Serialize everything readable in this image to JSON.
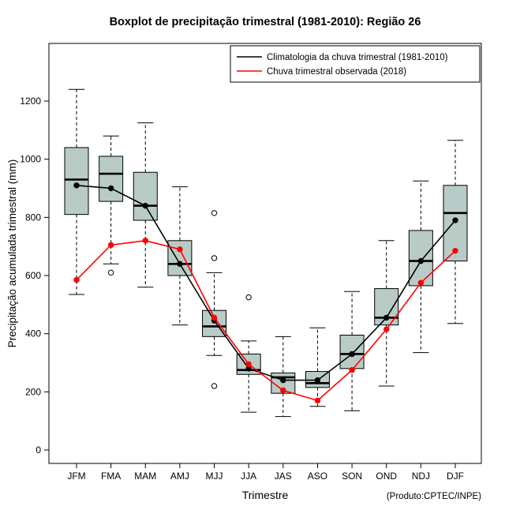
{
  "chart_data": {
    "type": "boxplot",
    "title": "Boxplot de precipitação trimestral (1981-2010): Região 26",
    "xlabel": "Trimestre",
    "ylabel": "Precipitação acumulada trimestral (mm)",
    "source_note": "(Produto:CPTEC/INPE)",
    "categories": [
      "JFM",
      "FMA",
      "MAM",
      "AMJ",
      "MJJ",
      "JJA",
      "JAS",
      "ASO",
      "SON",
      "OND",
      "NDJ",
      "DJF"
    ],
    "yticks": [
      0,
      200,
      400,
      600,
      800,
      1000,
      1200
    ],
    "ylim": [
      0,
      1300
    ],
    "box_fill": "#b9cbc6",
    "box_stroke": "#000000",
    "grid": false,
    "legend_position": "top-right",
    "boxes": [
      {
        "category": "JFM",
        "low": 535,
        "q1": 810,
        "median": 930,
        "q3": 1040,
        "high": 1240,
        "outliers": []
      },
      {
        "category": "FMA",
        "low": 640,
        "q1": 855,
        "median": 950,
        "q3": 1010,
        "high": 1080,
        "outliers": [
          610
        ]
      },
      {
        "category": "MAM",
        "low": 560,
        "q1": 790,
        "median": 840,
        "q3": 955,
        "high": 1125,
        "outliers": []
      },
      {
        "category": "AMJ",
        "low": 430,
        "q1": 600,
        "median": 640,
        "q3": 720,
        "high": 905,
        "outliers": []
      },
      {
        "category": "MJJ",
        "low": 325,
        "q1": 390,
        "median": 425,
        "q3": 480,
        "high": 610,
        "outliers": [
          815,
          660,
          220
        ]
      },
      {
        "category": "JJA",
        "low": 130,
        "q1": 260,
        "median": 275,
        "q3": 330,
        "high": 375,
        "outliers": [
          525
        ]
      },
      {
        "category": "JAS",
        "low": 115,
        "q1": 195,
        "median": 250,
        "q3": 265,
        "high": 390,
        "outliers": []
      },
      {
        "category": "ASO",
        "low": 150,
        "q1": 215,
        "median": 230,
        "q3": 270,
        "high": 420,
        "outliers": []
      },
      {
        "category": "SON",
        "low": 135,
        "q1": 280,
        "median": 330,
        "q3": 395,
        "high": 545,
        "outliers": []
      },
      {
        "category": "OND",
        "low": 220,
        "q1": 430,
        "median": 455,
        "q3": 555,
        "high": 720,
        "outliers": []
      },
      {
        "category": "NDJ",
        "low": 335,
        "q1": 565,
        "median": 650,
        "q3": 755,
        "high": 925,
        "outliers": []
      },
      {
        "category": "DJF",
        "low": 435,
        "q1": 650,
        "median": 815,
        "q3": 910,
        "high": 1065,
        "outliers": []
      }
    ],
    "series": [
      {
        "name": "Climatologia da chuva trimestral (1981-2010)",
        "color": "#000000",
        "values": [
          910,
          900,
          840,
          640,
          445,
          280,
          240,
          240,
          330,
          455,
          650,
          790
        ]
      },
      {
        "name": "Chuva trimestral observada (2018)",
        "color": "#ff0000",
        "values": [
          585,
          705,
          720,
          690,
          455,
          295,
          205,
          170,
          275,
          415,
          575,
          685
        ]
      }
    ]
  }
}
